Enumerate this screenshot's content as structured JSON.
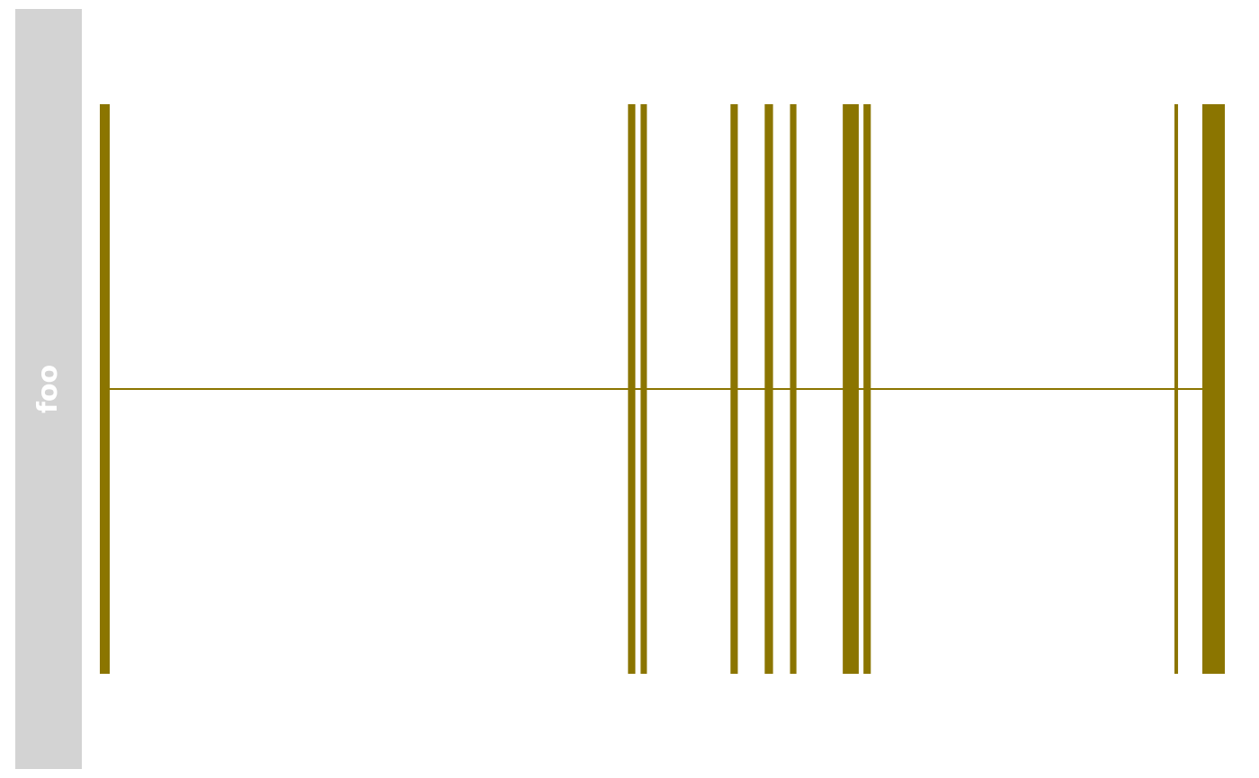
{
  "track": {
    "label": "foo",
    "strip_color": "#d3d3d3",
    "label_color": "#ffffff"
  },
  "chart_data": {
    "type": "gene-structure",
    "feature_color": "#8b7500",
    "x_range": [
      0,
      1000
    ],
    "backbone": {
      "start": 0,
      "end": 1000
    },
    "features": [
      {
        "start": 0.0,
        "end": 8.8
      },
      {
        "start": 469.5,
        "end": 476.0
      },
      {
        "start": 480.7,
        "end": 486.3
      },
      {
        "start": 560.6,
        "end": 567.1
      },
      {
        "start": 591.0,
        "end": 598.4
      },
      {
        "start": 613.5,
        "end": 619.2
      },
      {
        "start": 660.4,
        "end": 674.6
      },
      {
        "start": 678.8,
        "end": 685.3
      },
      {
        "start": 955.2,
        "end": 958.4
      },
      {
        "start": 980.0,
        "end": 1000.0
      }
    ]
  }
}
